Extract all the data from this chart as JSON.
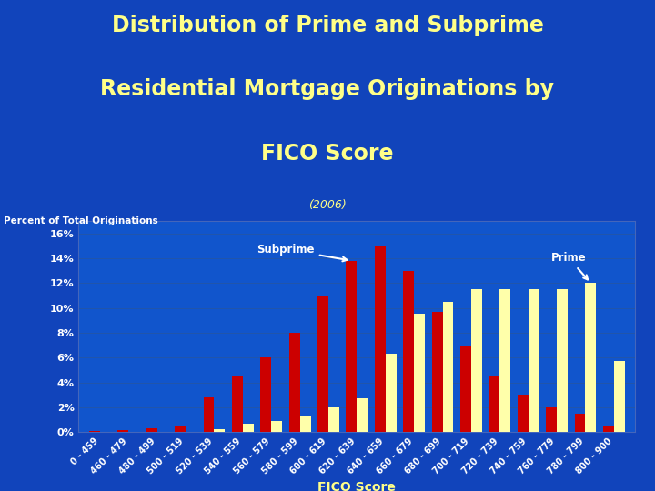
{
  "title_line1": "Distribution of Prime and Subprime",
  "title_line2": "Residential Mortgage Originations by",
  "title_line3": "FICO Score",
  "subtitle": "(2006)",
  "ylabel": "Percent of Total Originations",
  "xlabel": "FICO Score",
  "categories": [
    "0 - 459",
    "460 - 479",
    "480 - 499",
    "500 - 519",
    "520 - 539",
    "540 - 559",
    "560 - 579",
    "580 - 599",
    "600 - 619",
    "620 - 639",
    "640 - 659",
    "660 - 679",
    "680 - 699",
    "700 - 719",
    "720 - 739",
    "740 - 759",
    "760 - 779",
    "780 - 799",
    "800 - 900"
  ],
  "subprime": [
    0.1,
    0.15,
    0.3,
    0.5,
    2.8,
    4.5,
    6.0,
    8.0,
    11.0,
    13.8,
    15.0,
    13.0,
    9.7,
    7.0,
    4.5,
    3.0,
    2.0,
    1.5,
    0.5
  ],
  "prime": [
    0.0,
    0.0,
    0.0,
    0.0,
    0.2,
    0.7,
    0.9,
    1.3,
    2.0,
    2.7,
    6.3,
    9.5,
    10.5,
    11.5,
    11.5,
    11.5,
    11.5,
    12.0,
    5.7
  ],
  "subprime_color": "#CC0000",
  "prime_color": "#FFFFAA",
  "bg_color": "#1144BB",
  "plot_bg_color": "#1155CC",
  "title_color": "#FFFF88",
  "subtitle_color": "#FFFF88",
  "ylabel_color": "#FFFFFF",
  "xlabel_color": "#FFFF88",
  "tick_color": "#FFFFFF",
  "grid_color": "#2255AA",
  "yticks": [
    0,
    2,
    4,
    6,
    8,
    10,
    12,
    14,
    16
  ],
  "ytick_labels": [
    "0%",
    "2%",
    "4%",
    "6%",
    "8%",
    "10%",
    "12%",
    "14%",
    "16%"
  ],
  "title_fontsize": 17,
  "subtitle_fontsize": 9,
  "ylabel_fontsize": 7.5,
  "xlabel_fontsize": 10,
  "tick_fontsize": 7,
  "ytick_fontsize": 8
}
